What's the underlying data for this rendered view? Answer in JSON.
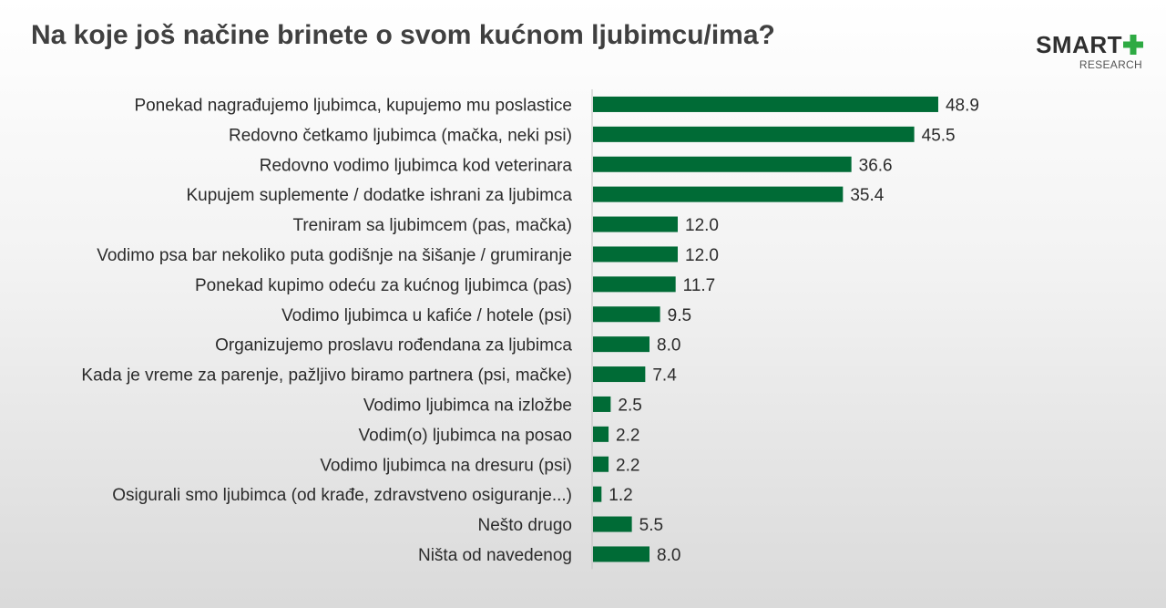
{
  "title": "Na koje još načine brinete o svom kućnom ljubimcu/ima?",
  "logo": {
    "word": "SMART",
    "sub": "RESEARCH"
  },
  "colors": {
    "bar": "#006b36",
    "accent": "#2eaa43",
    "axis": "#bfbfbf"
  },
  "chart_data": {
    "type": "bar",
    "orientation": "horizontal",
    "categories": [
      "Ponekad nagrađujemo ljubimca, kupujemo mu poslastice",
      "Redovno četkamo ljubimca (mačka, neki psi)",
      "Redovno vodimo ljubimca kod veterinara",
      "Kupujem suplemente / dodatke ishrani za ljubimca",
      "Treniram sa ljubimcem (pas, mačka)",
      "Vodimo psa bar nekoliko puta godišnje na šišanje / grumiranje",
      "Ponekad kupimo odeću za kućnog ljubimca (pas)",
      "Vodimo ljubimca u kafiće / hotele (psi)",
      "Organizujemo proslavu rođendana za ljubimca",
      "Kada je vreme za parenje, pažljivo biramo partnera (psi, mačke)",
      "Vodimo ljubimca na izložbe",
      "Vodim(o) ljubimca na posao",
      "Vodimo ljubimca na dresuru (psi)",
      "Osigurali smo ljubimca (od krađe, zdravstveno osiguranje...)",
      "Nešto drugo",
      "Ništa od navedenog"
    ],
    "values": [
      48.9,
      45.5,
      36.6,
      35.4,
      12.0,
      12.0,
      11.7,
      9.5,
      8.0,
      7.4,
      2.5,
      2.2,
      2.2,
      1.2,
      5.5,
      8.0
    ],
    "value_labels": [
      "48.9",
      "45.5",
      "36.6",
      "35.4",
      "12.0",
      "12.0",
      "11.7",
      "9.5",
      "8.0",
      "7.4",
      "2.5",
      "2.2",
      "2.2",
      "1.2",
      "5.5",
      "8.0"
    ],
    "xlim": [
      0,
      60
    ],
    "grid": false,
    "legend": "none"
  }
}
